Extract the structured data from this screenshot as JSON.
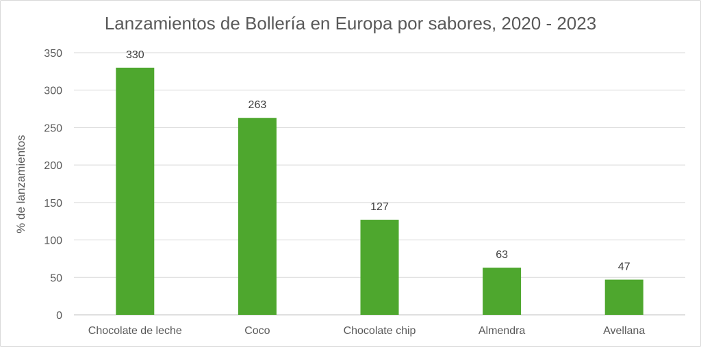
{
  "chart_data": {
    "type": "bar",
    "title": "Lanzamientos de Bollería en Europa por sabores, 2020 - 2023",
    "xlabel": "",
    "ylabel": "% de lanzamientos",
    "categories": [
      "Chocolate de leche",
      "Coco",
      "Chocolate chip",
      "Almendra",
      "Avellana"
    ],
    "values": [
      330,
      263,
      127,
      63,
      47
    ],
    "data_labels": [
      "330",
      "263",
      "127",
      "63",
      "47"
    ],
    "ylim": [
      0,
      350
    ],
    "yticks": [
      0,
      50,
      100,
      150,
      200,
      250,
      300,
      350
    ],
    "ytick_labels": [
      "0",
      "50",
      "100",
      "150",
      "200",
      "250",
      "300",
      "350"
    ],
    "grid": true,
    "legend": "none",
    "bar_color": "#4ea72e",
    "grid_color": "#d9d9d9"
  }
}
